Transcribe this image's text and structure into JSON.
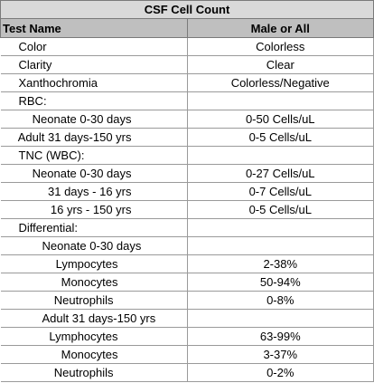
{
  "table": {
    "title": "CSF Cell Count",
    "headers": [
      "Test Name",
      "Male or All"
    ],
    "rows": [
      {
        "name": "Color",
        "value": "Colorless"
      },
      {
        "name": "Clarity",
        "value": "Clear"
      },
      {
        "name": "Xanthochromia",
        "value": "Colorless/Negative"
      },
      {
        "name": "RBC:",
        "value": ""
      },
      {
        "name": "Neonate 0-30 days",
        "value": "0-50 Cells/uL"
      },
      {
        "name": "Adult 31 days-150 yrs",
        "value": "0-5 Cells/uL"
      },
      {
        "name": "TNC (WBC):",
        "value": ""
      },
      {
        "name": "Neonate 0-30 days",
        "value": "0-27 Cells/uL"
      },
      {
        "name": "31 days - 16 yrs",
        "value": "0-7 Cells/uL"
      },
      {
        "name": "16 yrs - 150 yrs",
        "value": "0-5 Cells/uL"
      },
      {
        "name": "Differential:",
        "value": ""
      },
      {
        "name": "Neonate 0-30 days",
        "value": ""
      },
      {
        "name": "Lympocytes",
        "value": "2-38%"
      },
      {
        "name": "Monocytes",
        "value": "50-94%"
      },
      {
        "name": "Neutrophils",
        "value": "0-8%"
      },
      {
        "name": "Adult 31 days-150 yrs",
        "value": ""
      },
      {
        "name": "Lymphocytes",
        "value": "63-99%"
      },
      {
        "name": "Monocytes",
        "value": "3-37%"
      },
      {
        "name": "Neutrophils",
        "value": "0-2%"
      }
    ]
  }
}
